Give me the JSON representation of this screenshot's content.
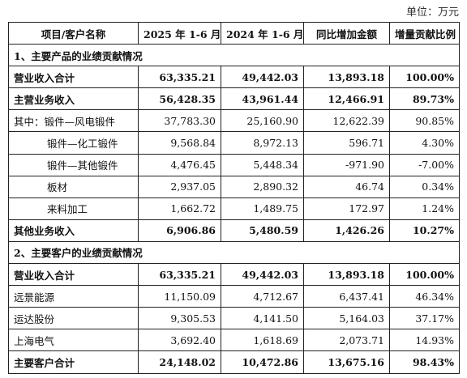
{
  "unit_label": "单位：万元",
  "headers": [
    "项目/客户名称",
    "2025 年 1-6 月",
    "2024 年 1-6 月",
    "同比增加金额",
    "增量贡献比例"
  ],
  "section1_title": "1、主要产品的业绩贡献情况",
  "section1_rows": [
    {
      "name": "营业收入合计",
      "v2025": "63,335.21",
      "v2024": "49,442.03",
      "inc": "13,893.18",
      "ratio": "100.00%",
      "bold": true,
      "indent": false
    },
    {
      "name": "主营业务收入",
      "v2025": "56,428.35",
      "v2024": "43,961.44",
      "inc": "12,466.91",
      "ratio": "89.73%",
      "bold": true,
      "indent": false
    },
    {
      "name": "其中：锻件—风电锻件",
      "v2025": "37,783.30",
      "v2024": "25,160.90",
      "inc": "12,622.39",
      "ratio": "90.85%",
      "bold": false,
      "indent": false
    },
    {
      "name": "锻件—化工锻件",
      "v2025": "9,568.84",
      "v2024": "8,972.13",
      "inc": "596.71",
      "ratio": "4.30%",
      "bold": false,
      "indent": true
    },
    {
      "name": "锻件—其他锻件",
      "v2025": "4,476.45",
      "v2024": "5,448.34",
      "inc": "-971.90",
      "ratio": "-7.00%",
      "bold": false,
      "indent": true
    },
    {
      "name": "板材",
      "v2025": "2,937.05",
      "v2024": "2,890.32",
      "inc": "46.74",
      "ratio": "0.34%",
      "bold": false,
      "indent": true
    },
    {
      "name": "来料加工",
      "v2025": "1,662.72",
      "v2024": "1,489.75",
      "inc": "172.97",
      "ratio": "1.24%",
      "bold": false,
      "indent": true
    },
    {
      "name": "其他业务收入",
      "v2025": "6,906.86",
      "v2024": "5,480.59",
      "inc": "1,426.26",
      "ratio": "10.27%",
      "bold": true,
      "indent": false
    }
  ],
  "section2_title": "2、主要客户的业绩贡献情况",
  "section2_rows": [
    {
      "name": "营业收入合计",
      "v2025": "63,335.21",
      "v2024": "49,442.03",
      "inc": "13,893.18",
      "ratio": "100.00%",
      "bold": true,
      "indent": false
    },
    {
      "name": "远景能源",
      "v2025": "11,150.09",
      "v2024": "4,712.67",
      "inc": "6,437.41",
      "ratio": "46.34%",
      "bold": false,
      "indent": false
    },
    {
      "name": "运达股份",
      "v2025": "9,305.53",
      "v2024": "4,141.50",
      "inc": "5,164.03",
      "ratio": "37.17%",
      "bold": false,
      "indent": false
    },
    {
      "name": "上海电气",
      "v2025": "3,692.40",
      "v2024": "1,618.69",
      "inc": "2,073.71",
      "ratio": "14.93%",
      "bold": false,
      "indent": false
    },
    {
      "name": "主要客户合计",
      "v2025": "24,148.02",
      "v2024": "10,472.86",
      "inc": "13,675.16",
      "ratio": "98.43%",
      "bold": true,
      "indent": false
    }
  ]
}
